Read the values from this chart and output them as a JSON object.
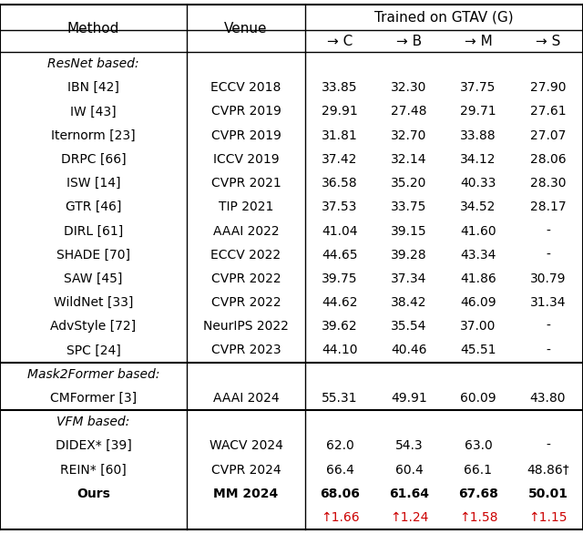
{
  "title": "Trained on GTAV (G)",
  "section_resnet": "ResNet based:",
  "section_mask2former": "Mask2Former based:",
  "section_vfm": "VFM based:",
  "rows_resnet": [
    [
      "IBN [42]",
      "ECCV 2018",
      "33.85",
      "32.30",
      "37.75",
      "27.90"
    ],
    [
      "IW [43]",
      "CVPR 2019",
      "29.91",
      "27.48",
      "29.71",
      "27.61"
    ],
    [
      "Iternorm [23]",
      "CVPR 2019",
      "31.81",
      "32.70",
      "33.88",
      "27.07"
    ],
    [
      "DRPC [66]",
      "ICCV 2019",
      "37.42",
      "32.14",
      "34.12",
      "28.06"
    ],
    [
      "ISW [14]",
      "CVPR 2021",
      "36.58",
      "35.20",
      "40.33",
      "28.30"
    ],
    [
      "GTR [46]",
      "TIP 2021",
      "37.53",
      "33.75",
      "34.52",
      "28.17"
    ],
    [
      "DIRL [61]",
      "AAAI 2022",
      "41.04",
      "39.15",
      "41.60",
      "-"
    ],
    [
      "SHADE [70]",
      "ECCV 2022",
      "44.65",
      "39.28",
      "43.34",
      "-"
    ],
    [
      "SAW [45]",
      "CVPR 2022",
      "39.75",
      "37.34",
      "41.86",
      "30.79"
    ],
    [
      "WildNet [33]",
      "CVPR 2022",
      "44.62",
      "38.42",
      "46.09",
      "31.34"
    ],
    [
      "AdvStyle [72]",
      "NeurIPS 2022",
      "39.62",
      "35.54",
      "37.00",
      "-"
    ],
    [
      "SPC [24]",
      "CVPR 2023",
      "44.10",
      "40.46",
      "45.51",
      "-"
    ]
  ],
  "rows_mask2former": [
    [
      "CMFormer [3]",
      "AAAI 2024",
      "55.31",
      "49.91",
      "60.09",
      "43.80"
    ]
  ],
  "rows_vfm": [
    [
      "DIDEX* [39]",
      "WACV 2024",
      "62.0",
      "54.3",
      "63.0",
      "-"
    ],
    [
      "REIN* [60]",
      "CVPR 2024",
      "66.4",
      "60.4",
      "66.1",
      "48.86†"
    ],
    [
      "Ours",
      "MM 2024",
      "68.06",
      "61.64",
      "67.68",
      "50.01"
    ]
  ],
  "improvement_row": [
    "↑1.66",
    "↑1.24",
    "↑1.58",
    "↑1.15"
  ],
  "sub_headers": [
    "→ C",
    "→ B",
    "→ M",
    "→ S"
  ],
  "bg_color": "#ffffff",
  "red_color": "#cc0000",
  "figsize": [
    6.4,
    5.86
  ],
  "dpi": 100
}
